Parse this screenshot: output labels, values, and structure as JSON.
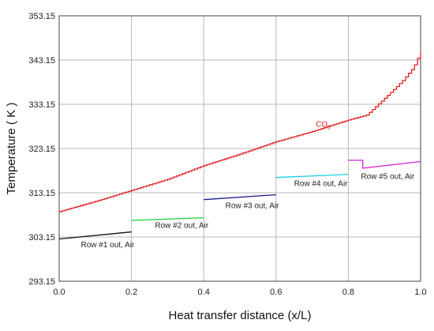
{
  "chart_data": {
    "type": "line",
    "xlabel": "Heat transfer distance (x/L)",
    "ylabel": "Temperature ( K )",
    "xlim": [
      0.0,
      1.0
    ],
    "ylim": [
      293.15,
      353.15
    ],
    "x_ticks": [
      "0.0",
      "0.2",
      "0.4",
      "0.6",
      "0.8",
      "1.0"
    ],
    "y_ticks": [
      "293.15",
      "303.15",
      "313.15",
      "323.15",
      "333.15",
      "343.15",
      "353.15"
    ],
    "grid": true,
    "series": [
      {
        "name": "CO2",
        "label_main": "CO",
        "label_sub": "2",
        "color": "#e02020",
        "stepped": true,
        "x": [
          0.0,
          0.1,
          0.2,
          0.3,
          0.4,
          0.5,
          0.6,
          0.7,
          0.8,
          0.85,
          0.9,
          0.95,
          0.98,
          1.0
        ],
        "y": [
          308.9,
          311.2,
          313.7,
          316.2,
          319.3,
          321.9,
          324.7,
          327.0,
          329.6,
          330.7,
          334.5,
          338.5,
          341.5,
          345.0
        ]
      },
      {
        "name": "Row #1 out, Air",
        "color": "#111111",
        "x": [
          0.0,
          0.2
        ],
        "y": [
          302.7,
          304.3
        ]
      },
      {
        "name": "Row #2 out, Air",
        "color": "#1fd040",
        "x": [
          0.2,
          0.4
        ],
        "y": [
          306.9,
          307.5
        ]
      },
      {
        "name": "Row #3 out, Air",
        "color": "#1a1a8c",
        "x": [
          0.4,
          0.6
        ],
        "y": [
          311.6,
          312.7
        ]
      },
      {
        "name": "Row #4 out, Air",
        "color": "#16d0e0",
        "x": [
          0.6,
          0.8
        ],
        "y": [
          316.6,
          317.3
        ]
      },
      {
        "name": "Row #5 out, Air",
        "color": "#d020d0",
        "x": [
          0.8,
          0.84,
          0.84,
          1.0
        ],
        "y": [
          320.5,
          320.5,
          318.7,
          320.2
        ]
      }
    ],
    "annotations": [
      {
        "text": "Row #1 out, Air",
        "x": 0.06,
        "y": 300.8
      },
      {
        "text": "Row #2 out, Air",
        "x": 0.265,
        "y": 305.2
      },
      {
        "text": "Row #3 out, Air",
        "x": 0.46,
        "y": 309.7
      },
      {
        "text": "Row #4 out, Air",
        "x": 0.65,
        "y": 314.7
      },
      {
        "text": "Row #5 out, Air",
        "x": 0.835,
        "y": 316.3
      },
      {
        "text": "CO2",
        "x": 0.71,
        "y": 328.1
      }
    ]
  }
}
